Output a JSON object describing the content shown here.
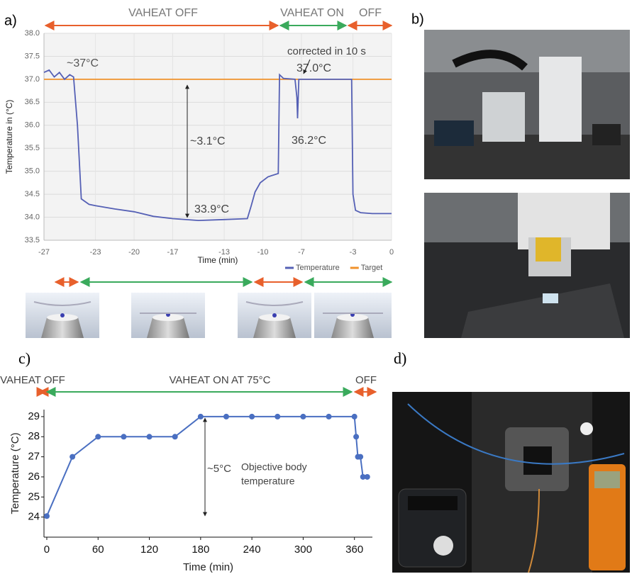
{
  "panel_labels": [
    "a)",
    "b)",
    "c)",
    "d)"
  ],
  "chart_data": [
    {
      "type": "line",
      "x_label": "Time (min)",
      "y_label": "Temperature in (°C)",
      "annotations": [
        "VAHEAT OFF",
        "VAHEAT ON",
        "OFF",
        "~37°C",
        "corrected in 10 s",
        "37.0°C",
        "36.2°C",
        "~3.1°C",
        "33.9°C"
      ],
      "x": [
        -27,
        -26.6,
        -26.2,
        -25.8,
        -25.4,
        -25,
        -24.7,
        -24.4,
        -24.1,
        -23.5,
        -23,
        -21.5,
        -20,
        -18.5,
        -17,
        -15,
        -13,
        -11.2,
        -10.9,
        -10.6,
        -10.2,
        -9.6,
        -8.8,
        -8.7,
        -8.4,
        -7.5,
        -7.35,
        -7.3,
        -7.2,
        -6.5,
        -5,
        -3.1,
        -3,
        -2.8,
        -2.4,
        -1.5,
        0
      ],
      "series": [
        {
          "name": "Temperature",
          "color": "#5560b5",
          "values": [
            37.15,
            37.2,
            37.05,
            37.15,
            37.0,
            37.1,
            37.05,
            36.0,
            34.4,
            34.28,
            34.25,
            34.18,
            34.12,
            34.02,
            33.97,
            33.93,
            33.95,
            33.97,
            34.25,
            34.55,
            34.75,
            34.88,
            34.95,
            37.1,
            37.02,
            37.0,
            36.6,
            36.15,
            37.0,
            37.0,
            37.0,
            37.0,
            34.5,
            34.15,
            34.1,
            34.08,
            34.08
          ]
        },
        {
          "name": "Target",
          "color": "#f0922b",
          "values": [
            37,
            37,
            37,
            37,
            37,
            37,
            37,
            37,
            37,
            37,
            37,
            37,
            37,
            37,
            37,
            37,
            37,
            37,
            37,
            37,
            37,
            37,
            37,
            37,
            37,
            37,
            37,
            37,
            37,
            37,
            37,
            37,
            37,
            37,
            37,
            37,
            37
          ]
        }
      ],
      "xlim": [
        -27,
        0
      ],
      "xticks": [
        -27,
        -23,
        -20,
        -17,
        -13,
        -10,
        -7,
        -3,
        0
      ],
      "ylim": [
        33.5,
        38
      ],
      "yticks": [
        33.5,
        {
          "value": 34,
          "label": "34.0"
        },
        34.5,
        {
          "value": 35,
          "label": "35.0"
        },
        35.5,
        {
          "value": 36,
          "label": "36.0"
        },
        36.5,
        {
          "value": 37,
          "label": "37.0"
        },
        37.5,
        {
          "value": 38,
          "label": "38.0"
        }
      ],
      "grid": true,
      "legend": "bottom-right"
    },
    {
      "type": "line",
      "x_label": "Time (min)",
      "y_label": "Temperature (°C)",
      "annotations": [
        "VAHEAT OFF",
        "VAHEAT ON AT 75°C",
        "OFF",
        "~5°C",
        "Objective body",
        "temperature"
      ],
      "x": [
        0,
        30,
        60,
        90,
        120,
        150,
        180,
        210,
        240,
        270,
        300,
        330,
        360,
        362,
        364,
        367,
        370,
        375
      ],
      "series": [
        {
          "color": "#4a6fc1",
          "values": [
            24.05,
            27,
            28,
            28,
            28,
            28,
            29,
            29,
            29,
            29,
            29,
            29,
            29,
            28,
            27,
            27,
            26,
            26
          ]
        }
      ],
      "xlim": [
        -3.3,
        381
      ],
      "xticks": [
        0,
        60,
        120,
        180,
        240,
        300,
        360
      ],
      "ylim": [
        23,
        29.35
      ],
      "yticks": [
        24,
        25,
        26,
        27,
        28,
        29
      ],
      "grid": false,
      "markers": true
    }
  ]
}
